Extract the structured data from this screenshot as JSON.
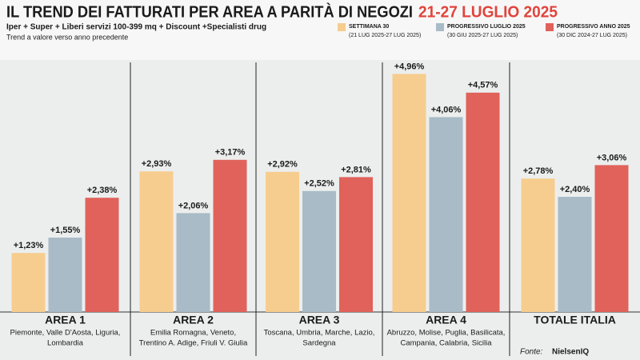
{
  "chart_data": {
    "type": "bar",
    "title": "IL TREND DEI FATTURATI PER AREA A PARITÀ DI NEGOZI",
    "title_highlight": "21-27 LUGLIO 2025",
    "subtitle": "Iper + Super + Liberi servizi 100-399 mq + Discount +Specialisti drug",
    "note": "Trend a valore verso anno precedente",
    "categories": [
      "AREA 1",
      "AREA 2",
      "AREA 3",
      "AREA 4",
      "TOTALE ITALIA"
    ],
    "category_descriptions": [
      [
        "Piemonte, Valle D'Aosta, Liguria,",
        "Lombardia"
      ],
      [
        "Emilia Romagna, Veneto,",
        "Trentino A. Adige, Friuli V. Giulia"
      ],
      [
        "Toscana, Umbria, Marche, Lazio,",
        "Sardegna"
      ],
      [
        "Abruzzo, Molise, Puglia, Basilicata,",
        "Campania, Calabria, Sicilia"
      ],
      null
    ],
    "series": [
      {
        "name": "SETTIMANA 30",
        "period": "(21 LUG 2025-27 LUG 2025)",
        "color": "#f6cd8e",
        "values": [
          1.23,
          2.93,
          2.92,
          4.96,
          2.78
        ],
        "value_labels": [
          "+1,23%",
          "+2,93%",
          "+2,92%",
          "+4,96%",
          "+2,78%"
        ]
      },
      {
        "name": "PROGRESSIVO LUGLIO 2025",
        "period": "(30 GIU 2025-27 LUG 2025)",
        "color": "#a8bbc7",
        "values": [
          1.55,
          2.06,
          2.52,
          4.06,
          2.4
        ],
        "value_labels": [
          "+1,55%",
          "+2,06%",
          "+2,52%",
          "+4,06%",
          "+2,40%"
        ]
      },
      {
        "name": "PROGRESSIVO ANNO 2025",
        "period": "(30 DIC 2024-27 LUG 2025)",
        "color": "#e0625a",
        "values": [
          2.38,
          3.17,
          2.81,
          4.57,
          3.06
        ],
        "value_labels": [
          "+2,38%",
          "+3,17%",
          "+2,81%",
          "+4,57%",
          "+3,06%"
        ]
      }
    ],
    "ylim": [
      0,
      5.3
    ],
    "source_label": "Fonte:",
    "source": "NielsenIQ"
  }
}
